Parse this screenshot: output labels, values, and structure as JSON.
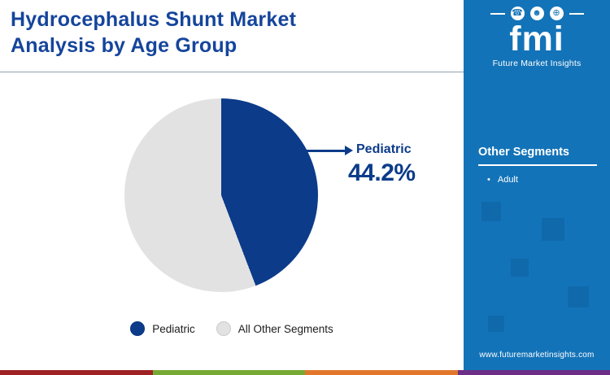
{
  "header": {
    "title": "Hydrocephalus Shunt Market Analysis by Age Group"
  },
  "chart_data": {
    "type": "pie",
    "title": "Hydrocephalus Shunt Market Analysis by Age Group",
    "slices": [
      {
        "label": "Pediatric",
        "value": 44.2,
        "color": "#0c3b8a"
      },
      {
        "label": "All Other Segments",
        "value": 55.8,
        "color": "#e2e2e2"
      }
    ],
    "annotation": {
      "label": "Pediatric",
      "value_text": "44.2%"
    },
    "legend_position": "bottom"
  },
  "sidebar": {
    "logo": {
      "text": "fmi",
      "subtitle": "Future Market Insights",
      "icons": [
        {
          "name": "phone-icon",
          "glyph": "☎"
        },
        {
          "name": "people-icon",
          "glyph": "☻"
        },
        {
          "name": "globe-icon",
          "glyph": "⊕"
        }
      ]
    },
    "section_title": "Other Segments",
    "items": [
      {
        "bullet": "•",
        "label": "Adult"
      }
    ],
    "website": "www.futuremarketinsights.com"
  },
  "colors": {
    "primary_blue": "#0c3b8a",
    "title_blue": "#15459c",
    "slice_gray": "#e2e2e2",
    "sidebar_blue": "#1373b8",
    "stripe": [
      "#9e2124",
      "#76a933",
      "#e2772c",
      "#6d2e87"
    ]
  }
}
